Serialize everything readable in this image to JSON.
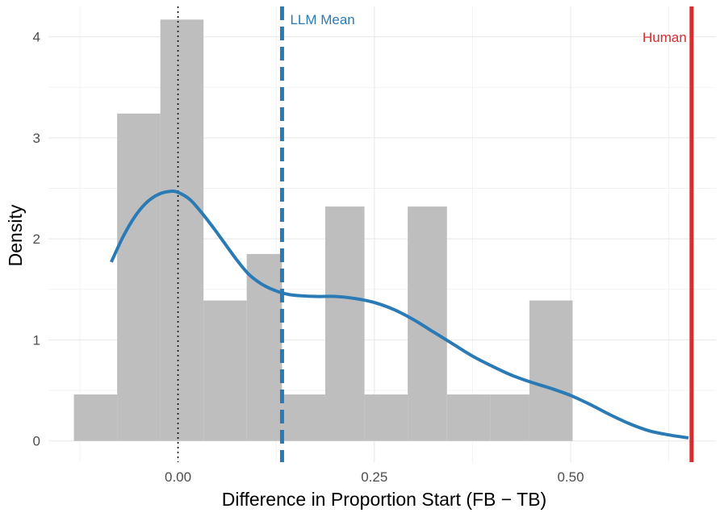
{
  "chart_data": {
    "type": "histogram",
    "xlabel": "Difference in Proportion Start (FB − TB)",
    "ylabel": "Density",
    "xlim": [
      -0.165,
      0.685
    ],
    "ylim": [
      -0.21,
      4.3
    ],
    "x_ticks": [
      0.0,
      0.25,
      0.5
    ],
    "x_tick_labels": [
      "0.00",
      "0.25",
      "0.50"
    ],
    "y_ticks": [
      0,
      1,
      2,
      3,
      4
    ],
    "y_tick_labels": [
      "0",
      "1",
      "2",
      "3",
      "4"
    ],
    "grid": true,
    "histogram": {
      "bin_edges": [
        -0.1325,
        -0.0775,
        -0.0225,
        0.0325,
        0.0875,
        0.1325,
        0.1875,
        0.2375,
        0.2925,
        0.3425,
        0.3975,
        0.4475,
        0.5025
      ],
      "values": [
        0.46,
        3.24,
        4.17,
        1.39,
        1.85,
        0.46,
        2.32,
        0.46,
        2.32,
        0.46,
        0.46,
        1.39
      ],
      "color": "#bebebe"
    },
    "density_curve": {
      "color": "#2a7ab6",
      "x": [
        -0.085,
        -0.07,
        -0.055,
        -0.04,
        -0.025,
        -0.01,
        0.0,
        0.015,
        0.03,
        0.045,
        0.06,
        0.075,
        0.09,
        0.105,
        0.12,
        0.135,
        0.15,
        0.175,
        0.2,
        0.225,
        0.25,
        0.275,
        0.3,
        0.325,
        0.35,
        0.375,
        0.4,
        0.425,
        0.45,
        0.475,
        0.5,
        0.525,
        0.55,
        0.575,
        0.6,
        0.625,
        0.65
      ],
      "y": [
        1.77,
        2.02,
        2.22,
        2.36,
        2.44,
        2.47,
        2.46,
        2.39,
        2.26,
        2.11,
        1.95,
        1.79,
        1.65,
        1.56,
        1.5,
        1.46,
        1.44,
        1.43,
        1.43,
        1.41,
        1.37,
        1.3,
        1.2,
        1.08,
        0.96,
        0.84,
        0.74,
        0.65,
        0.58,
        0.52,
        0.45,
        0.36,
        0.26,
        0.17,
        0.1,
        0.06,
        0.03
      ]
    },
    "reference_lines": [
      {
        "x": 0.0,
        "style": "dotted",
        "color": "#000000"
      },
      {
        "x": 0.1325,
        "style": "dashed",
        "color": "#2a7ab6",
        "label": "LLM Mean"
      },
      {
        "x": 0.654,
        "style": "solid",
        "color": "#d62e2e",
        "label": "Human"
      }
    ]
  }
}
